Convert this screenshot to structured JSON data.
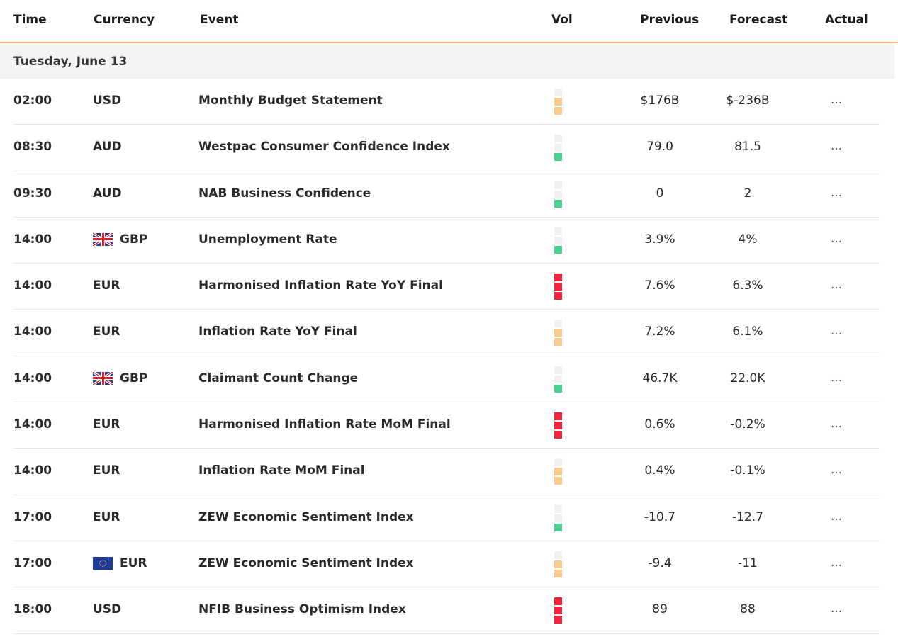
{
  "header": {
    "time": "Time",
    "currency": "Currency",
    "event": "Event",
    "vol": "Vol",
    "previous": "Previous",
    "forecast": "Forecast",
    "actual": "Actual"
  },
  "day_label": "Tuesday, June 13",
  "colors": {
    "high": "#f0243b",
    "medium": "#fcca8e",
    "low": "#4bd190",
    "empty": "#f1f1f1",
    "header_border": "#f5b27a"
  },
  "rows": [
    {
      "time": "02:00",
      "currency": "USD",
      "flag": "",
      "event": "Monthly Budget Statement",
      "vol_level": "medium",
      "previous": "$176B",
      "forecast": "$-236B",
      "actual": "..."
    },
    {
      "time": "08:30",
      "currency": "AUD",
      "flag": "",
      "event": "Westpac Consumer Confidence Index",
      "vol_level": "low",
      "previous": "79.0",
      "forecast": "81.5",
      "actual": "..."
    },
    {
      "time": "09:30",
      "currency": "AUD",
      "flag": "",
      "event": "NAB Business Confidence",
      "vol_level": "low",
      "previous": "0",
      "forecast": "2",
      "actual": "..."
    },
    {
      "time": "14:00",
      "currency": "GBP",
      "flag": "uk-flag-icon",
      "event": "Unemployment Rate",
      "vol_level": "low",
      "previous": "3.9%",
      "forecast": "4%",
      "actual": "..."
    },
    {
      "time": "14:00",
      "currency": "EUR",
      "flag": "",
      "event": "Harmonised Inflation Rate YoY Final",
      "vol_level": "high",
      "previous": "7.6%",
      "forecast": "6.3%",
      "actual": "..."
    },
    {
      "time": "14:00",
      "currency": "EUR",
      "flag": "",
      "event": "Inflation Rate YoY Final",
      "vol_level": "medium",
      "previous": "7.2%",
      "forecast": "6.1%",
      "actual": "..."
    },
    {
      "time": "14:00",
      "currency": "GBP",
      "flag": "uk-flag-icon",
      "event": "Claimant Count Change",
      "vol_level": "low",
      "previous": "46.7K",
      "forecast": "22.0K",
      "actual": "..."
    },
    {
      "time": "14:00",
      "currency": "EUR",
      "flag": "",
      "event": "Harmonised Inflation Rate MoM Final",
      "vol_level": "high",
      "previous": "0.6%",
      "forecast": "-0.2%",
      "actual": "..."
    },
    {
      "time": "14:00",
      "currency": "EUR",
      "flag": "",
      "event": "Inflation Rate MoM Final",
      "vol_level": "medium",
      "previous": "0.4%",
      "forecast": "-0.1%",
      "actual": "..."
    },
    {
      "time": "17:00",
      "currency": "EUR",
      "flag": "",
      "event": "ZEW Economic Sentiment Index",
      "vol_level": "low",
      "previous": "-10.7",
      "forecast": "-12.7",
      "actual": "..."
    },
    {
      "time": "17:00",
      "currency": "EUR",
      "flag": "eu-flag-icon",
      "event": "ZEW Economic Sentiment Index",
      "vol_level": "medium",
      "previous": "-9.4",
      "forecast": "-11",
      "actual": "..."
    },
    {
      "time": "18:00",
      "currency": "USD",
      "flag": "",
      "event": "NFIB Business Optimism Index",
      "vol_level": "high",
      "previous": "89",
      "forecast": "88",
      "actual": "..."
    }
  ]
}
